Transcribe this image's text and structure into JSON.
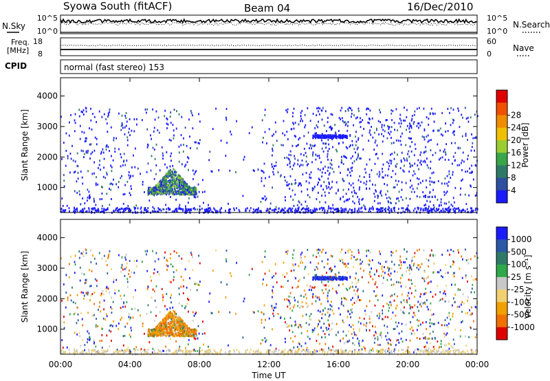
{
  "header": {
    "station": "Syowa South (fitACF)",
    "beam": "Beam 04",
    "date": "16/Dec/2010"
  },
  "side_labels": {
    "nsky": "N.Sky",
    "nsearch": "N.Search",
    "freq_line1": "Freq.",
    "freq_line2": "[MHz]",
    "nave": "Nave",
    "cpid": "CPID",
    "cpid_value": "normal (fast stereo) 153"
  },
  "colors": {
    "power_scale": [
      "#1b1bff",
      "#2e4ea0",
      "#2f7a66",
      "#3aa64a",
      "#9acd32",
      "#f0c000",
      "#f08c00",
      "#f05000",
      "#e00000"
    ],
    "velocity_scale": [
      "#1b1bff",
      "#2a57a8",
      "#2f7a66",
      "#2fa84a",
      "#c8c8c8",
      "#f0d070",
      "#f0a000",
      "#f07000",
      "#e00000"
    ]
  },
  "chart_data": [
    {
      "type": "line",
      "name": "noise-panel",
      "left_ticks": [
        "10^5",
        "10^0"
      ],
      "right_ticks": [
        "10^5",
        "10^0"
      ],
      "series": [
        {
          "name": "N.Sky",
          "style": "solid"
        },
        {
          "name": "N.Search",
          "style": "dotted"
        }
      ]
    },
    {
      "type": "line",
      "name": "freq-panel",
      "left_ticks": [
        "18",
        "8"
      ],
      "right_ticks": [
        "60",
        "0"
      ],
      "series": [
        {
          "name": "Freq.",
          "style": "solid"
        },
        {
          "name": "Nave",
          "style": "dotted"
        }
      ]
    },
    {
      "type": "heatmap",
      "name": "power-panel",
      "ylabel": "Slant Range [km]",
      "yticks": [
        "1000",
        "2000",
        "3000",
        "4000"
      ],
      "ylim": [
        180,
        4600
      ],
      "xlim_hours": [
        0,
        24
      ],
      "colorbar_label": "Power [dB]",
      "colorbar_ticks": [
        "4",
        "8",
        "12",
        "16",
        "20",
        "24",
        "28"
      ],
      "features": [
        {
          "t_start": 5.0,
          "t_end": 7.8,
          "r_min": 800,
          "r_max": 1700,
          "note": "dense echo patch"
        },
        {
          "t_start": 14.5,
          "t_end": 16.5,
          "r_min": 2650,
          "r_max": 2750,
          "note": "horizontal echo band"
        }
      ]
    },
    {
      "type": "heatmap",
      "name": "velocity-panel",
      "ylabel": "Slant Range [km]",
      "yticks": [
        "1000",
        "2000",
        "3000",
        "4000"
      ],
      "ylim": [
        180,
        4600
      ],
      "xlim_hours": [
        0,
        24
      ],
      "xlabel": "Time UT",
      "xticks": [
        "00:00",
        "04:00",
        "08:00",
        "12:00",
        "16:00",
        "20:00",
        "00:00"
      ],
      "colorbar_label": "Velocity [m s⁻¹]",
      "colorbar_ticks": [
        "1000",
        "500",
        "100",
        "25",
        "-25",
        "-100",
        "-500",
        "-1000"
      ]
    }
  ]
}
